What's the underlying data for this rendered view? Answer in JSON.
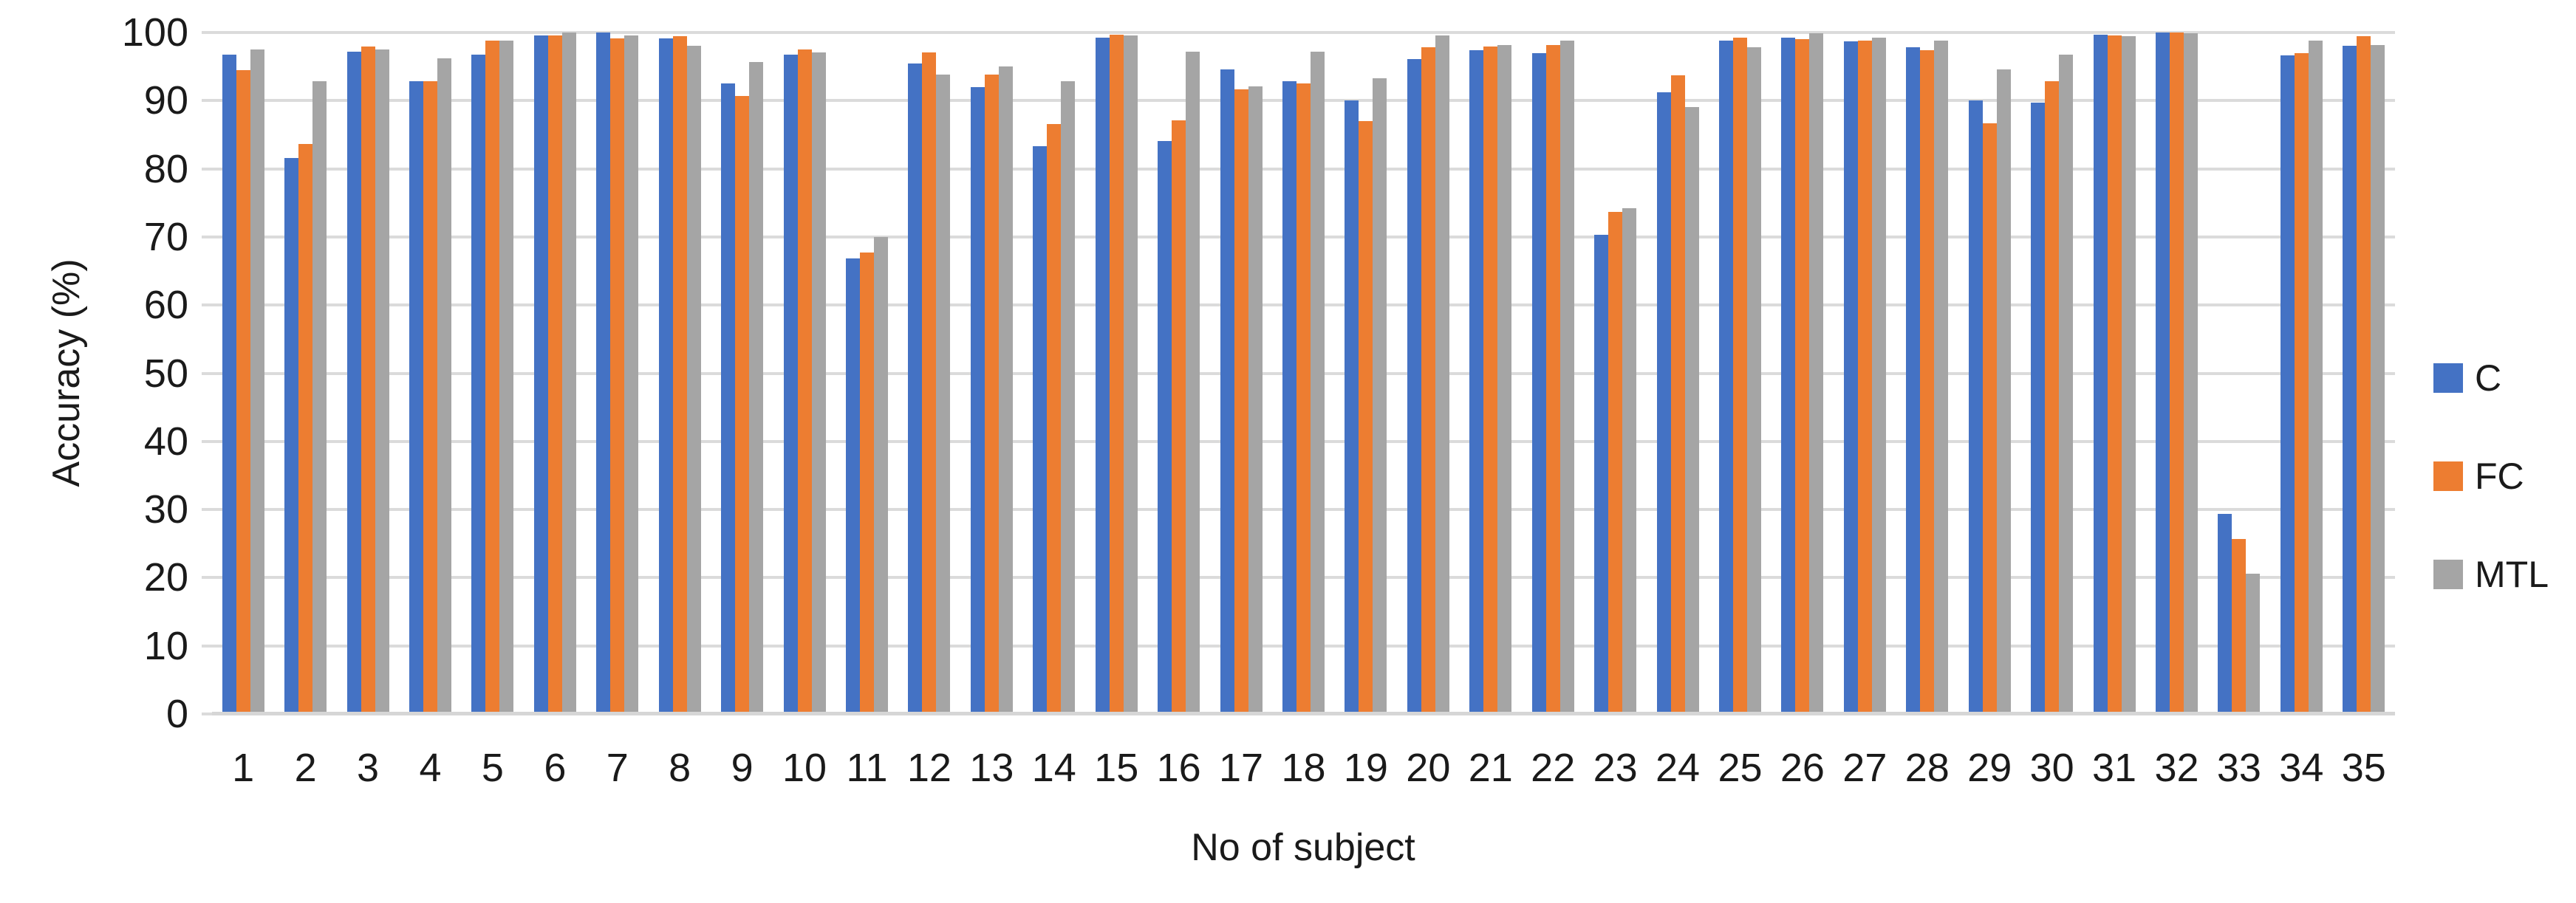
{
  "chart_data": {
    "type": "bar",
    "title": "",
    "xlabel": "No of subject",
    "ylabel": "Accuracy (%)",
    "categories": [
      1,
      2,
      3,
      4,
      5,
      6,
      7,
      8,
      9,
      10,
      11,
      12,
      13,
      14,
      15,
      16,
      17,
      18,
      19,
      20,
      21,
      22,
      23,
      24,
      25,
      26,
      27,
      28,
      29,
      30,
      31,
      32,
      33,
      34,
      35
    ],
    "series": [
      {
        "name": "C",
        "color": "#4472c4",
        "values": [
          96.8,
          81.6,
          97.2,
          92.8,
          96.7,
          99.6,
          100,
          99.1,
          92.5,
          96.7,
          66.9,
          95.4,
          92.0,
          83.3,
          99.2,
          84.1,
          94.6,
          92.9,
          90.0,
          96.1,
          97.4,
          97.0,
          70.3,
          91.2,
          98.8,
          99.2,
          98.7,
          97.8,
          90.0,
          89.7,
          99.7,
          100,
          29.4,
          96.6,
          98.1
        ]
      },
      {
        "name": "FC",
        "color": "#ed7d31",
        "values": [
          94.5,
          83.6,
          97.9,
          92.8,
          98.8,
          99.6,
          99.1,
          99.5,
          90.7,
          97.5,
          67.7,
          97.1,
          93.8,
          86.6,
          99.7,
          87.1,
          91.7,
          92.5,
          87.0,
          97.8,
          97.9,
          98.2,
          73.7,
          93.7,
          99.2,
          99.0,
          98.8,
          97.4,
          86.7,
          92.9,
          99.6,
          100,
          25.7,
          97.0,
          99.5
        ]
      },
      {
        "name": "MTL",
        "color": "#a5a5a5",
        "values": [
          97.5,
          92.9,
          97.5,
          96.2,
          98.8,
          100,
          99.6,
          98.1,
          95.7,
          97.1,
          70.0,
          93.8,
          95.0,
          92.9,
          99.6,
          97.2,
          92.1,
          97.2,
          93.3,
          99.6,
          98.2,
          98.8,
          74.2,
          89.1,
          97.8,
          99.9,
          99.2,
          98.8,
          94.6,
          96.7,
          99.5,
          99.9,
          20.6,
          98.8,
          98.2
        ]
      }
    ],
    "ylim": [
      0,
      100
    ],
    "yticks": [
      0,
      10,
      20,
      30,
      40,
      50,
      60,
      70,
      80,
      90,
      100
    ],
    "grid": true,
    "legend_position": "right"
  },
  "colors": {
    "gridline": "#dbdbdb",
    "axis_line": "#d6d6d6",
    "text": "#1a1a1a"
  }
}
